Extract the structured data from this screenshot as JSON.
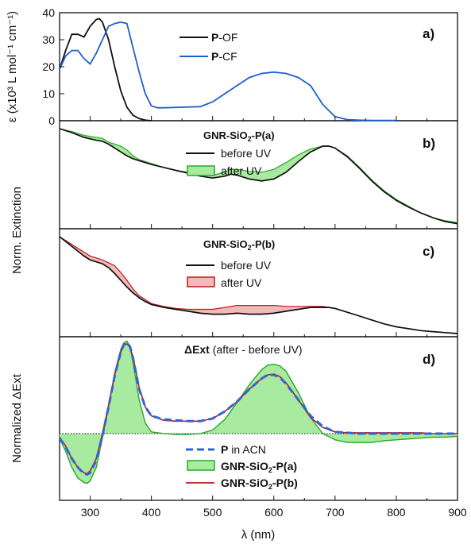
{
  "colors": {
    "black": "#111111",
    "blue": "#1f5fd1",
    "blue_dash": "#2f64d8",
    "green_line": "#2aa828",
    "green_fill": "#a8eaa0",
    "red_line": "#c01818",
    "red_fill": "#f2b9bb"
  },
  "chart_data": [
    {
      "type": "line",
      "panel": "a)",
      "ylabel": "ε (x10³ L mol⁻¹ cm⁻¹)",
      "ylim": [
        0,
        40
      ],
      "xlim": [
        250,
        900
      ],
      "y_ticks": [
        "0",
        "10",
        "20",
        "30",
        "40"
      ],
      "legend_placement": "top-center",
      "series": [
        {
          "name": "P-OF",
          "x": [
            250,
            260,
            270,
            280,
            290,
            300,
            310,
            315,
            320,
            330,
            340,
            350,
            360,
            370,
            380,
            390,
            400
          ],
          "values": [
            19,
            26,
            32,
            32,
            31,
            35,
            37.5,
            37.8,
            36.5,
            30,
            20,
            11,
            5,
            2,
            0.8,
            0.2,
            0
          ]
        },
        {
          "name": "P-CF",
          "x": [
            250,
            260,
            270,
            280,
            290,
            300,
            310,
            320,
            330,
            340,
            350,
            360,
            370,
            380,
            390,
            400,
            410,
            420,
            450,
            480,
            500,
            520,
            540,
            560,
            580,
            600,
            620,
            640,
            660,
            680,
            700,
            720,
            740,
            760,
            780,
            800
          ],
          "values": [
            19,
            24,
            26,
            26,
            23,
            21,
            25,
            30,
            35,
            36,
            36.5,
            36,
            27,
            18,
            10,
            5.5,
            4.8,
            4.8,
            5,
            5.2,
            7,
            10,
            13,
            16,
            17.5,
            18,
            17.5,
            16,
            13,
            6,
            1.5,
            0.4,
            0.2,
            0.1,
            0.1,
            0.1
          ]
        }
      ],
      "legend": {
        "pof_bold": "P",
        "pof_rest": "-OF",
        "pcf_bold": "P",
        "pcf_rest": "-CF"
      }
    },
    {
      "type": "area",
      "panel": "b)",
      "title_main": "GNR-SiO",
      "title_sub": "2",
      "title_tail": "-P(a)",
      "xlim": [
        250,
        900
      ],
      "legend_placement": "top-right",
      "legend": {
        "before": "before UV",
        "after": "after UV"
      },
      "x": [
        250,
        270,
        290,
        310,
        320,
        330,
        340,
        350,
        360,
        370,
        380,
        390,
        400,
        420,
        440,
        460,
        480,
        500,
        520,
        530,
        540,
        560,
        580,
        600,
        620,
        640,
        660,
        680,
        690,
        700,
        720,
        740,
        760,
        780,
        800,
        820,
        840,
        860,
        880,
        900
      ],
      "before": [
        1.0,
        0.96,
        0.91,
        0.88,
        0.87,
        0.84,
        0.8,
        0.76,
        0.72,
        0.69,
        0.67,
        0.65,
        0.63,
        0.6,
        0.57,
        0.54,
        0.51,
        0.49,
        0.51,
        0.53,
        0.52,
        0.48,
        0.46,
        0.48,
        0.55,
        0.66,
        0.76,
        0.82,
        0.82,
        0.8,
        0.71,
        0.59,
        0.46,
        0.35,
        0.26,
        0.19,
        0.13,
        0.08,
        0.04,
        0.02
      ],
      "after": [
        1.0,
        0.97,
        0.93,
        0.91,
        0.9,
        0.86,
        0.84,
        0.82,
        0.78,
        0.72,
        0.68,
        0.66,
        0.64,
        0.6,
        0.57,
        0.55,
        0.53,
        0.52,
        0.55,
        0.58,
        0.58,
        0.56,
        0.55,
        0.58,
        0.65,
        0.73,
        0.79,
        0.82,
        0.82,
        0.8,
        0.72,
        0.6,
        0.47,
        0.36,
        0.27,
        0.2,
        0.13,
        0.08,
        0.05,
        0.03
      ]
    },
    {
      "type": "area",
      "panel": "c)",
      "title_main": "GNR-SiO",
      "title_sub": "2",
      "title_tail": "-P(b)",
      "xlim": [
        250,
        900
      ],
      "legend_placement": "top-right",
      "legend": {
        "before": "before UV",
        "after": "after UV"
      },
      "x": [
        250,
        270,
        290,
        300,
        310,
        320,
        330,
        340,
        350,
        360,
        370,
        380,
        390,
        400,
        420,
        440,
        460,
        480,
        500,
        520,
        540,
        560,
        580,
        600,
        620,
        640,
        660,
        680,
        690,
        700,
        720,
        740,
        760,
        780,
        800,
        820,
        840,
        860,
        880,
        900
      ],
      "before": [
        1.0,
        0.9,
        0.8,
        0.76,
        0.74,
        0.72,
        0.68,
        0.62,
        0.55,
        0.48,
        0.42,
        0.37,
        0.33,
        0.3,
        0.27,
        0.25,
        0.23,
        0.21,
        0.2,
        0.2,
        0.21,
        0.2,
        0.2,
        0.21,
        0.23,
        0.25,
        0.27,
        0.27,
        0.27,
        0.26,
        0.22,
        0.18,
        0.14,
        0.1,
        0.07,
        0.05,
        0.03,
        0.02,
        0.01,
        0.0
      ],
      "after": [
        1.0,
        0.92,
        0.84,
        0.8,
        0.78,
        0.76,
        0.73,
        0.7,
        0.63,
        0.55,
        0.46,
        0.39,
        0.35,
        0.31,
        0.28,
        0.26,
        0.25,
        0.25,
        0.25,
        0.27,
        0.29,
        0.29,
        0.29,
        0.29,
        0.28,
        0.28,
        0.28,
        0.28,
        0.27,
        0.26,
        0.22,
        0.18,
        0.14,
        0.1,
        0.07,
        0.05,
        0.03,
        0.02,
        0.01,
        0.0
      ]
    },
    {
      "type": "line",
      "panel": "d)",
      "title_delta": "ΔExt",
      "title_rest": " (after - before UV)",
      "xlabel": "λ (nm)",
      "ylabel_shared": "Norm. Extinction",
      "ylabel": "Normalized ΔExt",
      "xlim": [
        250,
        900
      ],
      "x_ticks": [
        "300",
        "400",
        "500",
        "600",
        "700",
        "800",
        "900"
      ],
      "legend_placement": "bottom-center",
      "legend": {
        "pacn_bold": "P",
        "pacn_rest": " in ACN",
        "ga_main": "GNR-SiO",
        "ga_sub": "2",
        "ga_tail": "-P(a)",
        "gb_main": "GNR-SiO",
        "gb_sub": "2",
        "gb_tail": "-P(b)"
      },
      "series": [
        {
          "name": "P in ACN",
          "x": [
            250,
            260,
            270,
            280,
            290,
            295,
            300,
            310,
            320,
            330,
            340,
            350,
            355,
            360,
            365,
            370,
            380,
            390,
            400,
            420,
            440,
            460,
            480,
            500,
            520,
            540,
            560,
            580,
            590,
            600,
            610,
            620,
            640,
            660,
            680,
            700,
            720,
            740,
            760,
            780,
            800,
            820,
            840,
            860,
            880,
            900
          ],
          "values": [
            -0.05,
            -0.15,
            -0.28,
            -0.38,
            -0.45,
            -0.46,
            -0.44,
            -0.3,
            -0.02,
            0.3,
            0.65,
            0.92,
            1.0,
            1.02,
            0.98,
            0.85,
            0.5,
            0.3,
            0.2,
            0.16,
            0.15,
            0.14,
            0.14,
            0.17,
            0.25,
            0.36,
            0.5,
            0.62,
            0.66,
            0.66,
            0.63,
            0.56,
            0.38,
            0.2,
            0.08,
            0.02,
            0.01,
            0.0,
            0.0,
            0.0,
            0.0,
            0.0,
            0.0,
            0.0,
            0.0,
            0.0
          ]
        },
        {
          "name": "GNR-SiO2-P(a)",
          "x": [
            250,
            260,
            270,
            280,
            290,
            295,
            300,
            310,
            320,
            330,
            340,
            350,
            355,
            360,
            365,
            370,
            380,
            390,
            400,
            420,
            440,
            460,
            480,
            500,
            520,
            540,
            560,
            580,
            590,
            600,
            610,
            620,
            640,
            660,
            680,
            700,
            720,
            740,
            760,
            780,
            800,
            820,
            840,
            860,
            880,
            900
          ],
          "values": [
            -0.05,
            -0.2,
            -0.38,
            -0.5,
            -0.55,
            -0.56,
            -0.53,
            -0.38,
            -0.05,
            0.3,
            0.68,
            0.95,
            1.02,
            1.04,
            0.98,
            0.8,
            0.38,
            0.12,
            0.02,
            0.0,
            -0.01,
            -0.01,
            0.0,
            0.04,
            0.16,
            0.35,
            0.55,
            0.72,
            0.77,
            0.78,
            0.76,
            0.7,
            0.46,
            0.18,
            0.0,
            -0.07,
            -0.1,
            -0.1,
            -0.1,
            -0.08,
            -0.07,
            -0.06,
            -0.05,
            -0.04,
            -0.04,
            -0.03
          ]
        },
        {
          "name": "GNR-SiO2-P(b)",
          "x": [
            250,
            260,
            270,
            280,
            290,
            295,
            300,
            310,
            320,
            330,
            340,
            350,
            355,
            360,
            365,
            370,
            380,
            390,
            400,
            420,
            440,
            460,
            480,
            500,
            520,
            540,
            560,
            580,
            590,
            600,
            610,
            620,
            640,
            660,
            680,
            700,
            720,
            740,
            760,
            780,
            800,
            820,
            840,
            860,
            880,
            900
          ],
          "values": [
            -0.04,
            -0.14,
            -0.28,
            -0.38,
            -0.44,
            -0.45,
            -0.42,
            -0.28,
            0.0,
            0.32,
            0.66,
            0.92,
            0.99,
            1.01,
            0.97,
            0.86,
            0.52,
            0.3,
            0.2,
            0.15,
            0.14,
            0.14,
            0.14,
            0.17,
            0.25,
            0.36,
            0.5,
            0.62,
            0.66,
            0.67,
            0.64,
            0.57,
            0.38,
            0.18,
            0.07,
            0.02,
            0.01,
            0.01,
            0.01,
            0.01,
            0.01,
            0.01,
            0.01,
            0.0,
            0.0,
            0.0
          ]
        }
      ]
    }
  ]
}
